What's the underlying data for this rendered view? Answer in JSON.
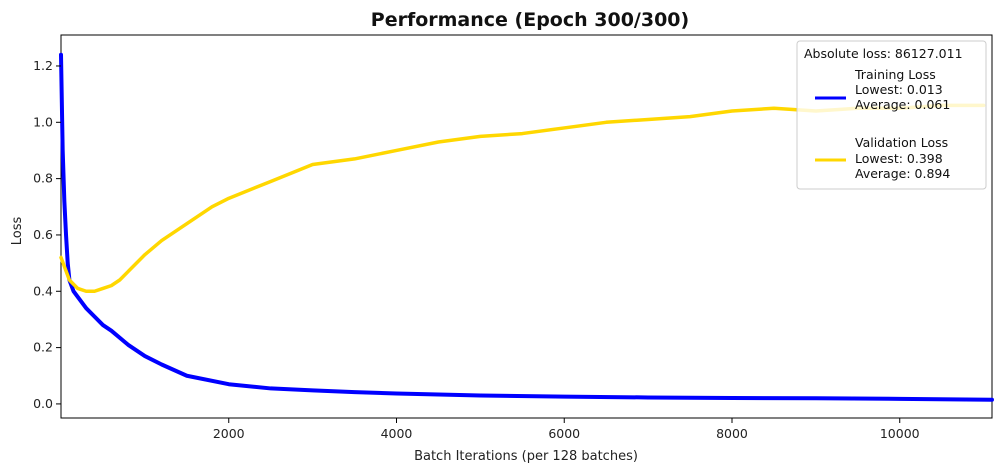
{
  "chart_data": {
    "type": "line",
    "title": "Performance (Epoch 300/300)",
    "xlabel": "Batch Iterations (per 128 batches)",
    "ylabel": "Loss",
    "xlim": [
      0,
      11100
    ],
    "ylim": [
      -0.05,
      1.31
    ],
    "x_ticks": [
      2000,
      4000,
      6000,
      8000,
      10000
    ],
    "y_ticks": [
      0.0,
      0.2,
      0.4,
      0.6,
      0.8,
      1.0,
      1.2
    ],
    "grid": false,
    "legend": {
      "placement": "top-right",
      "header": "Absolute loss: 86127.011",
      "entries": [
        {
          "name": "Training Loss",
          "lines": [
            "Training Loss",
            "Lowest: 0.013",
            "Average: 0.061"
          ],
          "color": "#0000ff"
        },
        {
          "name": "Validation Loss",
          "lines": [
            "Validation Loss",
            "Lowest: 0.398",
            "Average: 0.894"
          ],
          "color": "#ffd700"
        }
      ]
    },
    "series": [
      {
        "name": "Training Loss",
        "color": "#0000ff",
        "x": [
          0,
          20,
          40,
          60,
          80,
          100,
          150,
          200,
          300,
          400,
          500,
          600,
          800,
          1000,
          1200,
          1500,
          2000,
          2500,
          3000,
          3500,
          4000,
          5000,
          6000,
          7000,
          8000,
          9000,
          10000,
          11100
        ],
        "y": [
          1.24,
          0.9,
          0.72,
          0.6,
          0.5,
          0.44,
          0.4,
          0.38,
          0.34,
          0.31,
          0.28,
          0.26,
          0.21,
          0.17,
          0.14,
          0.1,
          0.07,
          0.055,
          0.048,
          0.042,
          0.037,
          0.03,
          0.026,
          0.023,
          0.021,
          0.02,
          0.018,
          0.015
        ]
      },
      {
        "name": "Validation Loss",
        "color": "#ffd700",
        "x": [
          0,
          100,
          200,
          300,
          400,
          500,
          600,
          700,
          800,
          1000,
          1200,
          1500,
          1800,
          2000,
          2500,
          3000,
          3500,
          4000,
          4500,
          5000,
          5500,
          6000,
          6500,
          7000,
          7500,
          8000,
          8500,
          9000,
          9500,
          10000,
          10500,
          11000
        ],
        "y": [
          0.52,
          0.44,
          0.41,
          0.4,
          0.4,
          0.41,
          0.42,
          0.44,
          0.47,
          0.53,
          0.58,
          0.64,
          0.7,
          0.73,
          0.79,
          0.85,
          0.87,
          0.9,
          0.93,
          0.95,
          0.96,
          0.98,
          1.0,
          1.01,
          1.02,
          1.04,
          1.05,
          1.04,
          1.05,
          1.05,
          1.06,
          1.06
        ]
      }
    ]
  }
}
